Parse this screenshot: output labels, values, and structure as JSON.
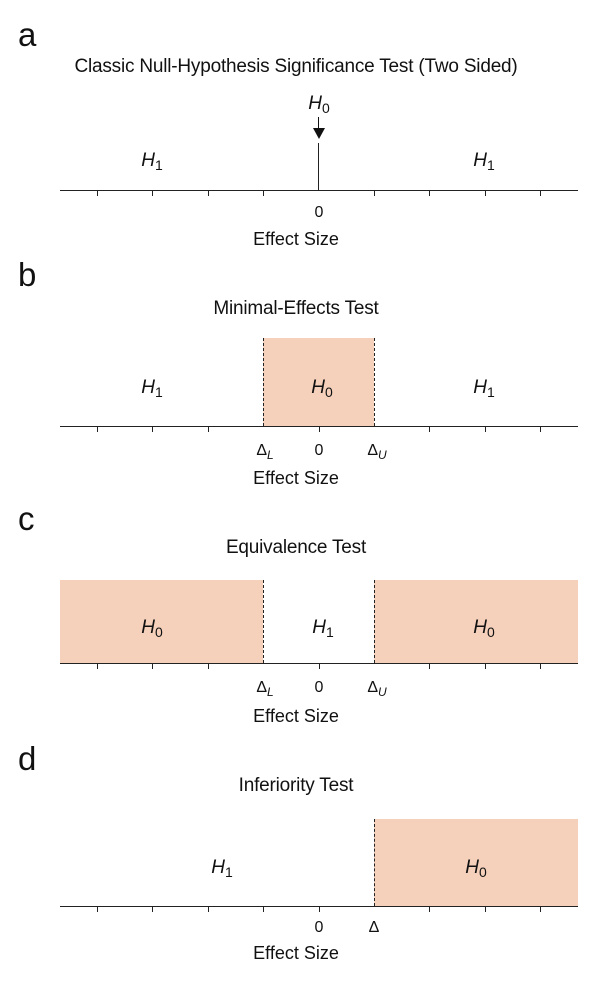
{
  "panels": [
    {
      "letter": "a",
      "title": "Classic Null-Hypothesis Significance Test (Two Sided)",
      "regions": [
        {
          "label": "H",
          "sub": "1"
        },
        {
          "label": "H",
          "sub": "1"
        }
      ],
      "arrow_label": {
        "label": "H",
        "sub": "0"
      },
      "ticks": [
        {
          "text": "0"
        }
      ],
      "xlabel": "Effect Size"
    },
    {
      "letter": "b",
      "title": "Minimal-Effects Test",
      "regions": [
        {
          "label": "H",
          "sub": "1"
        },
        {
          "label": "H",
          "sub": "0"
        },
        {
          "label": "H",
          "sub": "1"
        }
      ],
      "ticks": [
        {
          "text": "Δ",
          "sub": "L"
        },
        {
          "text": "0"
        },
        {
          "text": "Δ",
          "sub": "U"
        }
      ],
      "xlabel": "Effect Size"
    },
    {
      "letter": "c",
      "title": "Equivalence Test",
      "regions": [
        {
          "label": "H",
          "sub": "0"
        },
        {
          "label": "H",
          "sub": "1"
        },
        {
          "label": "H",
          "sub": "0"
        }
      ],
      "ticks": [
        {
          "text": "Δ",
          "sub": "L"
        },
        {
          "text": "0"
        },
        {
          "text": "Δ",
          "sub": "U"
        }
      ],
      "xlabel": "Effect Size"
    },
    {
      "letter": "d",
      "title": "Inferiority Test",
      "regions": [
        {
          "label": "H",
          "sub": "1"
        },
        {
          "label": "H",
          "sub": "0"
        }
      ],
      "ticks": [
        {
          "text": "0"
        },
        {
          "text": "Δ"
        }
      ],
      "xlabel": "Effect Size"
    }
  ],
  "colors": {
    "shade": "#f5d0bb",
    "line": "#222222"
  }
}
